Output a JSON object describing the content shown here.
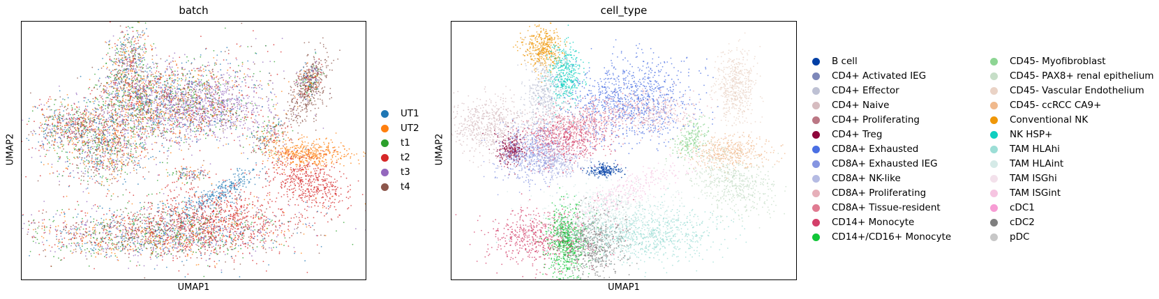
{
  "chart_data": [
    {
      "type": "scatter",
      "title": "batch",
      "xlabel": "UMAP1",
      "ylabel": "UMAP2",
      "ticks": "none",
      "legend_placement": "right",
      "series": [
        {
          "name": "UT1",
          "color": "#1f77b4"
        },
        {
          "name": "UT2",
          "color": "#ff7f0e"
        },
        {
          "name": "t1",
          "color": "#2ca02c"
        },
        {
          "name": "t2",
          "color": "#d62728"
        },
        {
          "name": "t3",
          "color": "#9467bd"
        },
        {
          "name": "t4",
          "color": "#8c564b"
        }
      ]
    },
    {
      "type": "scatter",
      "title": "cell_type",
      "xlabel": "UMAP1",
      "ylabel": "UMAP2",
      "ticks": "none",
      "legend_placement": "right",
      "series": [
        {
          "name": "B cell",
          "color": "#023fa5"
        },
        {
          "name": "CD4+ Activated IEG",
          "color": "#7d87b9"
        },
        {
          "name": "CD4+ Effector",
          "color": "#bec1d4"
        },
        {
          "name": "CD4+ Naive",
          "color": "#d6bcc0"
        },
        {
          "name": "CD4+ Proliferating",
          "color": "#bb7784"
        },
        {
          "name": "CD4+ Treg",
          "color": "#8e063b"
        },
        {
          "name": "CD8A+ Exhausted",
          "color": "#4a6fe3"
        },
        {
          "name": "CD8A+ Exhausted IEG",
          "color": "#8595e1"
        },
        {
          "name": "CD8A+ NK-like",
          "color": "#b5bbe3"
        },
        {
          "name": "CD8A+ Proliferating",
          "color": "#e6afb9"
        },
        {
          "name": "CD8A+ Tissue-resident",
          "color": "#e07b91"
        },
        {
          "name": "CD14+ Monocyte",
          "color": "#d33f6a"
        },
        {
          "name": "CD14+/CD16+ Monocyte",
          "color": "#11c638"
        },
        {
          "name": "CD45- Myofibroblast",
          "color": "#8dd593"
        },
        {
          "name": "CD45- PAX8+ renal epithelium",
          "color": "#c6dec7"
        },
        {
          "name": "CD45- Vascular Endothelium",
          "color": "#ead3c6"
        },
        {
          "name": "CD45- ccRCC CA9+",
          "color": "#f0b98d"
        },
        {
          "name": "Conventional NK",
          "color": "#ef9708"
        },
        {
          "name": "NK HSP+",
          "color": "#0fcfc0"
        },
        {
          "name": "TAM HLAhi",
          "color": "#9cded6"
        },
        {
          "name": "TAM HLAint",
          "color": "#d5eae7"
        },
        {
          "name": "TAM ISGhi",
          "color": "#f3e1eb"
        },
        {
          "name": "TAM ISGint",
          "color": "#f6c4e1"
        },
        {
          "name": "cDC1",
          "color": "#f79cd4"
        },
        {
          "name": "cDC2",
          "color": "#7f7f7f"
        },
        {
          "name": "pDC",
          "color": "#c7c7c7"
        }
      ]
    }
  ]
}
